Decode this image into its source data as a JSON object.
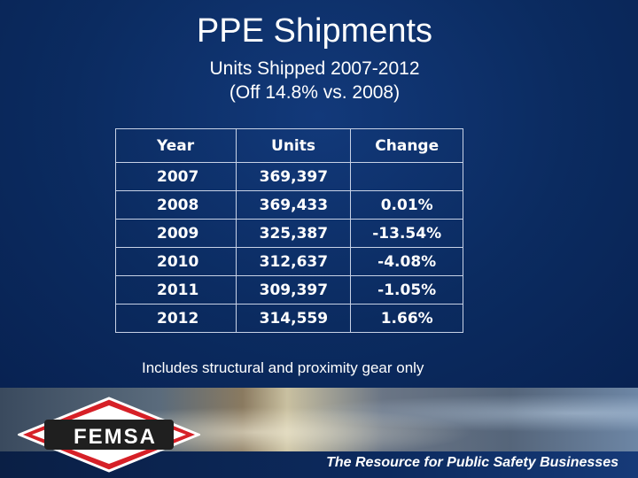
{
  "slide": {
    "title": "PPE Shipments",
    "subtitle_line1": "Units Shipped 2007-2012",
    "subtitle_line2": "(Off 14.8% vs. 2008)",
    "note": "Includes structural and proximity gear only"
  },
  "table": {
    "headers": [
      "Year",
      "Units",
      "Change"
    ],
    "rows": [
      [
        "2007",
        "369,397",
        ""
      ],
      [
        "2008",
        "369,433",
        "0.01%"
      ],
      [
        "2009",
        "325,387",
        "-13.54%"
      ],
      [
        "2010",
        "312,637",
        "-4.08%"
      ],
      [
        "2011",
        "309,397",
        "-1.05%"
      ],
      [
        "2012",
        "314,559",
        "1.66%"
      ]
    ]
  },
  "footer": {
    "logo_text": "FEMSA",
    "tagline": "The Resource for Public Safety Businesses"
  },
  "colors": {
    "background": "#0b2a5c",
    "logo_red": "#d62027",
    "text": "#ffffff"
  }
}
